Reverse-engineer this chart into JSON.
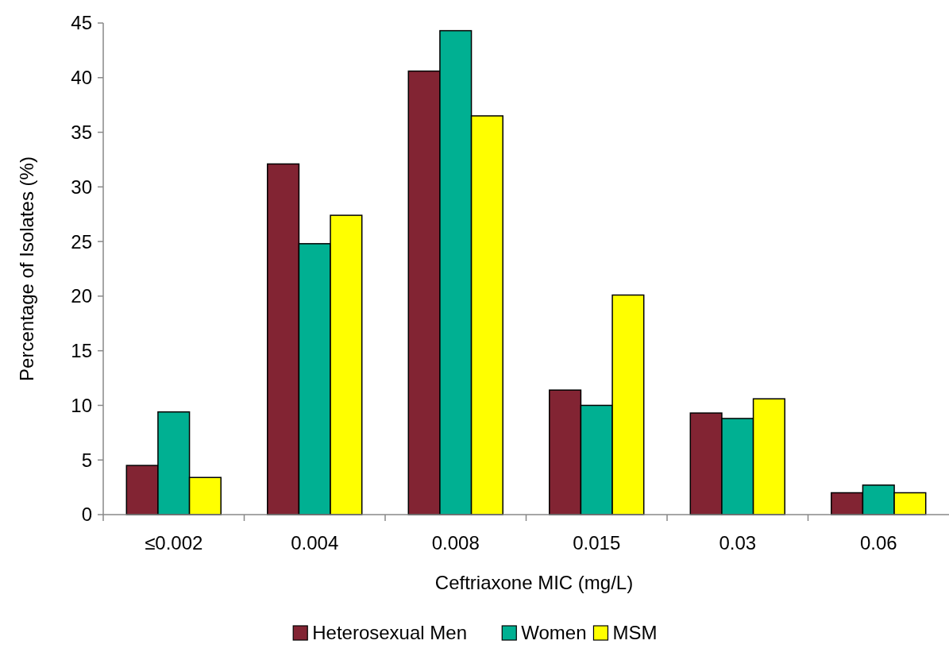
{
  "chart_data": {
    "type": "bar",
    "xlabel": "Ceftriaxone MIC (mg/L)",
    "ylabel": "Percentage of Isolates (%)",
    "categories": [
      "≤0.002",
      "0.004",
      "0.008",
      "0.015",
      "0.03",
      "0.06"
    ],
    "series": [
      {
        "name": "Heterosexual Men",
        "color": "#822433",
        "values": [
          4.5,
          32.1,
          40.6,
          11.4,
          9.3,
          2.0
        ]
      },
      {
        "name": "Women",
        "color": "#00b092",
        "values": [
          9.4,
          24.8,
          44.3,
          10.0,
          8.8,
          2.7
        ]
      },
      {
        "name": "MSM",
        "color": "#ffff00",
        "values": [
          3.4,
          27.4,
          36.5,
          20.1,
          10.6,
          2.0
        ]
      }
    ],
    "ylim": [
      0,
      45
    ],
    "yticks": [
      0,
      5,
      10,
      15,
      20,
      25,
      30,
      35,
      40,
      45
    ],
    "grid": false,
    "legend": "bottom"
  }
}
